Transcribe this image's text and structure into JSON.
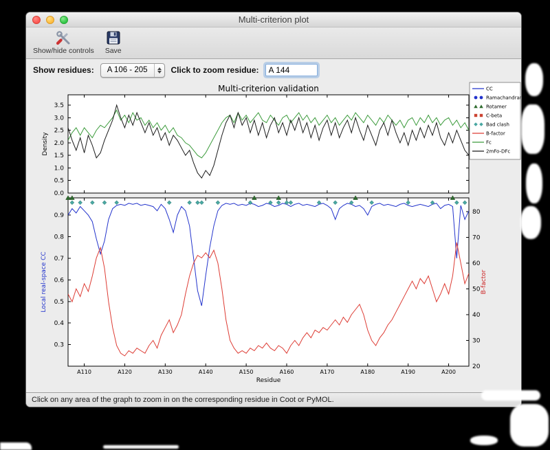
{
  "window": {
    "title": "Multi-criterion plot",
    "toolbar": {
      "show_hide_controls": "Show/hide controls",
      "save": "Save"
    },
    "controls": {
      "show_residues_label": "Show residues:",
      "residue_range": "A 106 - 205",
      "zoom_label": "Click to zoom residue:",
      "zoom_value": "A 144"
    },
    "status": "Click on any area of the graph to zoom in on the corresponding residue in Coot or PyMOL.",
    "traffic_light_colors": {
      "close": "#fc5753",
      "minimize": "#fdbc40",
      "zoom": "#33c748"
    }
  },
  "chart_data": {
    "type": "line",
    "title": "Multi-criterion validation",
    "xlabel": "Residue",
    "x_start": 106,
    "x_end": 205,
    "x_tick_residues": [
      110,
      120,
      130,
      140,
      150,
      160,
      170,
      180,
      190,
      200
    ],
    "x_tick_labels": [
      "A110",
      "A120",
      "A130",
      "A140",
      "A150",
      "A160",
      "A170",
      "A180",
      "A190",
      "A200"
    ],
    "top_plot": {
      "ylabel": "Density",
      "ylim": [
        0,
        3.91
      ],
      "yticks": [
        0.0,
        0.5,
        1.0,
        1.5,
        2.0,
        2.5,
        3.0,
        3.5
      ],
      "series": [
        {
          "name": "Fc",
          "color": "#3c9b3c",
          "values": [
            2.1,
            2.4,
            2.6,
            2.3,
            2.6,
            2.4,
            2.2,
            2.5,
            2.7,
            2.6,
            2.8,
            3.0,
            3.3,
            2.9,
            3.1,
            2.8,
            3.2,
            2.9,
            3.0,
            2.7,
            2.9,
            2.6,
            2.8,
            2.5,
            2.7,
            2.4,
            2.6,
            2.3,
            2.2,
            2.0,
            1.9,
            1.7,
            1.5,
            1.4,
            1.6,
            1.9,
            2.2,
            2.5,
            2.8,
            3.0,
            3.1,
            2.8,
            3.2,
            2.9,
            3.1,
            2.8,
            3.0,
            3.2,
            2.9,
            2.8,
            3.1,
            2.9,
            2.7,
            3.0,
            3.1,
            2.8,
            3.0,
            3.2,
            2.9,
            3.1,
            2.8,
            3.0,
            2.7,
            2.9,
            3.1,
            2.8,
            3.0,
            2.7,
            2.9,
            3.1,
            2.9,
            3.2,
            3.0,
            2.8,
            3.1,
            2.9,
            2.7,
            3.0,
            2.8,
            3.1,
            2.9,
            2.7,
            2.9,
            2.6,
            2.9,
            3.0,
            2.7,
            3.0,
            2.8,
            3.1,
            2.8,
            3.0,
            2.7,
            2.9,
            3.0,
            2.7,
            2.9,
            2.6,
            2.8,
            2.5
          ]
        },
        {
          "name": "2mFo-DFc",
          "color": "#1a1a1a",
          "values": [
            2.6,
            2.1,
            1.7,
            2.2,
            1.6,
            2.3,
            1.9,
            1.4,
            1.6,
            2.1,
            2.5,
            2.9,
            3.5,
            3.0,
            2.6,
            3.1,
            2.7,
            3.2,
            2.8,
            2.4,
            2.8,
            2.3,
            2.6,
            2.1,
            2.4,
            1.9,
            2.3,
            2.1,
            1.8,
            1.5,
            1.7,
            1.2,
            0.8,
            0.6,
            0.9,
            0.7,
            1.1,
            1.7,
            2.3,
            2.8,
            3.1,
            2.6,
            3.2,
            2.7,
            3.0,
            2.4,
            2.9,
            2.3,
            2.8,
            2.2,
            2.7,
            3.0,
            2.4,
            2.8,
            2.3,
            2.9,
            2.5,
            3.0,
            2.4,
            2.8,
            2.2,
            2.7,
            2.1,
            2.6,
            2.9,
            2.3,
            2.8,
            2.2,
            2.6,
            2.9,
            2.4,
            3.0,
            2.5,
            2.1,
            2.7,
            2.3,
            1.9,
            2.5,
            2.8,
            2.3,
            2.9,
            2.4,
            2.0,
            2.4,
            1.9,
            2.5,
            2.1,
            2.6,
            2.2,
            2.7,
            2.3,
            2.8,
            2.2,
            1.9,
            2.4,
            2.0,
            2.5,
            2.1,
            1.7,
            1.5
          ]
        }
      ]
    },
    "bottom_plot": {
      "ylabel_left": "Local real-space CC",
      "left_color": "#2233cc",
      "ylim_left": [
        0.2,
        0.98
      ],
      "yticks_left": [
        0.3,
        0.4,
        0.5,
        0.6,
        0.7,
        0.8,
        0.9
      ],
      "ylabel_right": "B-factor",
      "right_color": "#cc2222",
      "ylim_right": [
        20,
        85.3
      ],
      "yticks_right": [
        20,
        30,
        40,
        50,
        60,
        70,
        80
      ],
      "series": [
        {
          "name": "CC",
          "axis": "left",
          "color": "#2233cc",
          "values": [
            0.9,
            0.93,
            0.91,
            0.94,
            0.92,
            0.9,
            0.87,
            0.79,
            0.72,
            0.78,
            0.88,
            0.93,
            0.945,
            0.95,
            0.945,
            0.955,
            0.95,
            0.955,
            0.945,
            0.95,
            0.945,
            0.94,
            0.92,
            0.95,
            0.93,
            0.88,
            0.82,
            0.9,
            0.94,
            0.92,
            0.85,
            0.7,
            0.55,
            0.48,
            0.62,
            0.75,
            0.85,
            0.92,
            0.945,
            0.955,
            0.95,
            0.955,
            0.945,
            0.95,
            0.945,
            0.955,
            0.95,
            0.94,
            0.945,
            0.955,
            0.95,
            0.94,
            0.945,
            0.955,
            0.95,
            0.94,
            0.95,
            0.955,
            0.945,
            0.95,
            0.945,
            0.94,
            0.95,
            0.955,
            0.945,
            0.93,
            0.88,
            0.93,
            0.945,
            0.955,
            0.95,
            0.94,
            0.945,
            0.93,
            0.9,
            0.94,
            0.95,
            0.955,
            0.945,
            0.95,
            0.945,
            0.94,
            0.95,
            0.955,
            0.945,
            0.94,
            0.945,
            0.95,
            0.945,
            0.94,
            0.95,
            0.955,
            0.93,
            0.945,
            0.95,
            0.94,
            0.7,
            0.945,
            0.88,
            0.92
          ]
        },
        {
          "name": "B-factor",
          "axis": "right",
          "color": "#dd3b33",
          "values": [
            48,
            45,
            50,
            47,
            52,
            49,
            55,
            62,
            66,
            58,
            45,
            35,
            28,
            25,
            24,
            26,
            25,
            27,
            26,
            25,
            28,
            30,
            27,
            32,
            35,
            38,
            33,
            36,
            40,
            48,
            55,
            60,
            63,
            62,
            64,
            62,
            65,
            60,
            50,
            38,
            30,
            27,
            25,
            26,
            25,
            27,
            26,
            28,
            27,
            29,
            27,
            26,
            28,
            27,
            25,
            28,
            30,
            28,
            31,
            33,
            31,
            34,
            33,
            35,
            34,
            36,
            38,
            36,
            39,
            37,
            40,
            42,
            44,
            40,
            34,
            30,
            28,
            31,
            33,
            36,
            38,
            41,
            44,
            47,
            50,
            53,
            50,
            54,
            52,
            55,
            50,
            45,
            48,
            52,
            48,
            55,
            68,
            60,
            52,
            56
          ]
        }
      ],
      "markers": [
        {
          "name": "Bad clash",
          "shape": "diamond",
          "color": "#4aa8a2",
          "cc_value": 0.958,
          "residues": [
            107,
            109,
            112,
            115,
            118,
            131,
            136,
            138,
            139,
            143,
            151,
            156,
            158,
            160,
            161,
            168,
            172,
            176,
            181,
            190,
            196,
            202,
            204
          ]
        },
        {
          "name": "Rotamer",
          "shape": "triangle",
          "color": "#2e6b2e",
          "cc_value": 0.98,
          "residues": [
            106,
            107,
            152,
            158,
            177,
            201
          ]
        }
      ]
    },
    "legend": [
      {
        "label": "CC",
        "type": "line",
        "color": "#2233cc"
      },
      {
        "label": "Ramachandran",
        "type": "dots",
        "color": "#2233cc"
      },
      {
        "label": "Rotamer",
        "type": "triangles",
        "color": "#2e6b2e"
      },
      {
        "label": "C-beta",
        "type": "squares",
        "color": "#cc4433"
      },
      {
        "label": "Bad clash",
        "type": "diamonds",
        "color": "#4aa8a2"
      },
      {
        "label": "B-factor",
        "type": "line",
        "color": "#dd3b33"
      },
      {
        "label": "Fc",
        "type": "line",
        "color": "#3c9b3c"
      },
      {
        "label": "2mFo-DFc",
        "type": "line",
        "color": "#1a1a1a"
      }
    ]
  }
}
